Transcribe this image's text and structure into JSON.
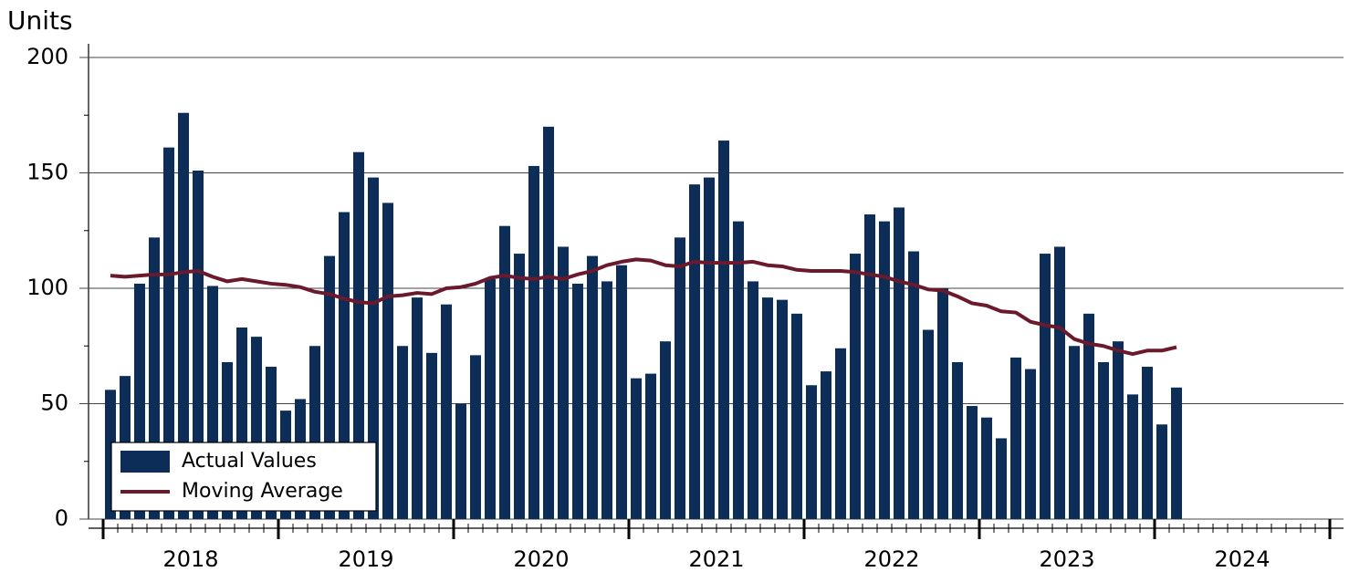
{
  "chart_data": {
    "type": "bar-line",
    "y_label": "Units",
    "categories": [
      "2018",
      null,
      null,
      null,
      null,
      null,
      null,
      null,
      null,
      null,
      null,
      null,
      "2019",
      null,
      null,
      null,
      null,
      null,
      null,
      null,
      null,
      null,
      null,
      null,
      "2020",
      null,
      null,
      null,
      null,
      null,
      null,
      null,
      null,
      null,
      null,
      null,
      "2021",
      null,
      null,
      null,
      null,
      null,
      null,
      null,
      null,
      null,
      null,
      null,
      "2022",
      null,
      null,
      null,
      null,
      null,
      null,
      null,
      null,
      null,
      null,
      null,
      "2023",
      null,
      null,
      null,
      null,
      null,
      null,
      null,
      null,
      null,
      null,
      null,
      "2024",
      null
    ],
    "series": [
      {
        "name": "Actual Values",
        "type": "bar",
        "color": "#0b2d58",
        "values": [
          56,
          62,
          102,
          122,
          161,
          176,
          151,
          101,
          68,
          83,
          79,
          66,
          47,
          52,
          75,
          114,
          133,
          159,
          148,
          137,
          75,
          96,
          72,
          93,
          50,
          71,
          104,
          127,
          115,
          153,
          170,
          118,
          102,
          114,
          103,
          110,
          61,
          63,
          77,
          122,
          145,
          148,
          164,
          129,
          103,
          96,
          95,
          89,
          58,
          64,
          74,
          115,
          132,
          129,
          135,
          116,
          82,
          100,
          68,
          49,
          44,
          35,
          70,
          65,
          115,
          118,
          75,
          89,
          68,
          77,
          54,
          66,
          41,
          57
        ]
      },
      {
        "name": "Moving Average",
        "type": "line",
        "color": "#6b1a2c",
        "values": [
          105.5,
          105,
          105.5,
          106,
          106,
          107,
          107.5,
          105,
          103,
          104,
          103,
          102,
          101.5,
          100.5,
          98.5,
          97.5,
          95.5,
          94,
          93.5,
          96.5,
          97,
          98,
          97.5,
          100,
          100.5,
          102,
          104.5,
          105.5,
          104.5,
          104,
          105,
          104,
          106,
          107.5,
          110,
          111.5,
          112.5,
          112,
          110,
          109.5,
          111.5,
          111,
          111,
          111,
          111.5,
          110,
          109.5,
          108,
          107.5,
          107.5,
          107.5,
          107,
          106,
          105,
          103,
          101.5,
          99.5,
          99,
          96.5,
          93.5,
          92.5,
          90,
          89.5,
          85.5,
          84,
          83,
          78,
          76,
          75,
          73,
          71.5,
          73,
          73,
          74.5
        ]
      }
    ],
    "ylim": [
      0,
      200
    ],
    "yticks": [
      0,
      50,
      100,
      150,
      200
    ],
    "yminorticks": [
      25,
      75,
      125,
      175
    ],
    "grid": true,
    "legend": "lower-left"
  }
}
